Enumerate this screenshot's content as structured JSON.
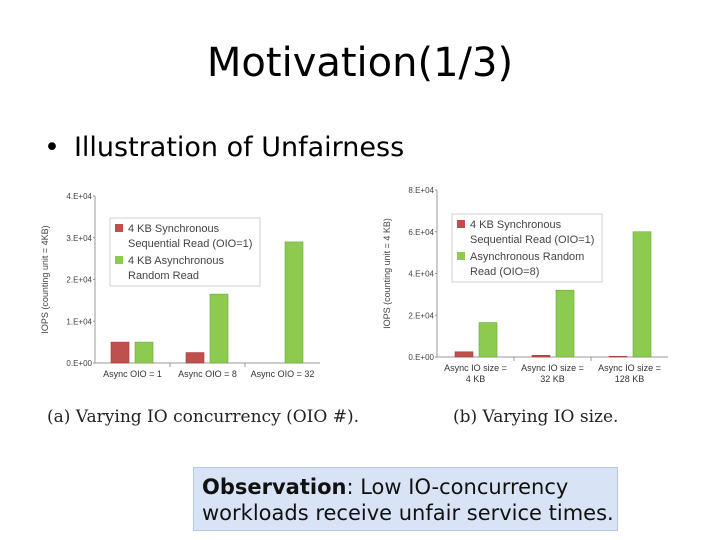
{
  "slide": {
    "title": "Motivation(1/3)",
    "bullet": "Illustration of Unfairness",
    "observation_label": "Observation",
    "observation_text": ": Low IO-concurrency workloads receive unfair service times.",
    "caption_a": "(a)  Varying IO concurrency (OIO #).",
    "caption_b": "(b)  Varying IO size."
  },
  "chart_data": [
    {
      "type": "bar",
      "ylabel": "IOPS (counting unit = 4KB)",
      "ylim": [
        0,
        40000
      ],
      "yticks": [
        "0.E+00",
        "1.E+04",
        "2.E+04",
        "3.E+04",
        "4.E+04"
      ],
      "categories": [
        [
          "Async OIO = 1"
        ],
        [
          "Async OIO = 8"
        ],
        [
          "Async OIO = 32"
        ]
      ],
      "series": [
        {
          "name_lines": [
            "4 KB Synchronous",
            "Sequential Read (OIO=1)"
          ],
          "color": "#c0504d",
          "values": [
            5000,
            2500,
            0
          ]
        },
        {
          "name_lines": [
            "4 KB Asynchronous",
            "Random Read"
          ],
          "color": "#8ccb50",
          "values": [
            5000,
            16500,
            29000
          ]
        }
      ],
      "legend": "top-left"
    },
    {
      "type": "bar",
      "ylabel": "IOPS (counting unit = 4 KB)",
      "ylim": [
        0,
        80000
      ],
      "yticks": [
        "0.E+00",
        "2.E+04",
        "4.E+04",
        "6.E+04",
        "8.E+04"
      ],
      "categories": [
        [
          "Async IO size =",
          "4 KB"
        ],
        [
          "Async IO size =",
          "32 KB"
        ],
        [
          "Async IO size =",
          "128 KB"
        ]
      ],
      "series": [
        {
          "name_lines": [
            "4 KB Synchronous",
            "Sequential Read (OIO=1)"
          ],
          "color": "#c0504d",
          "values": [
            2500,
            800,
            300
          ]
        },
        {
          "name_lines": [
            "Asynchronous Random",
            "Read (OIO=8)"
          ],
          "color": "#8ccb50",
          "values": [
            16500,
            32000,
            60000
          ]
        }
      ],
      "legend": "top-left"
    }
  ]
}
